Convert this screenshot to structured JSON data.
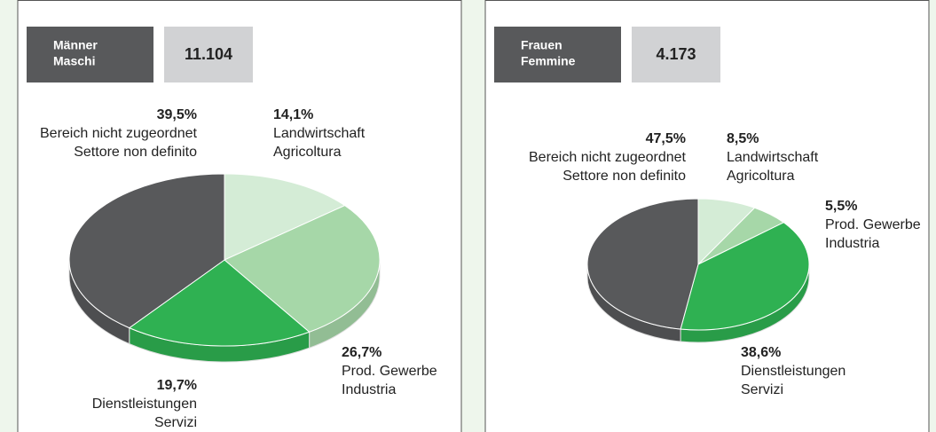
{
  "chart_data": [
    {
      "type": "pie3d",
      "title": [
        "Männer",
        "Maschi"
      ],
      "total": 11104,
      "total_label": "11.104",
      "categories": [
        "Landwirtschaft",
        "Prod. Gewerbe",
        "Dienstleistungen",
        "Bereich nicht zugeordnet"
      ],
      "categories_it": [
        "Agricoltura",
        "Industria",
        "Servizi",
        "Settore non definito"
      ],
      "values": [
        14.1,
        26.7,
        19.7,
        39.5
      ],
      "value_labels": [
        "14,1%",
        "26,7%",
        "19,7%",
        "39,5%"
      ],
      "colors": [
        "#d4ecd6",
        "#a6d7a8",
        "#2fb152",
        "#58595b"
      ]
    },
    {
      "type": "pie3d",
      "title": [
        "Frauen",
        "Femmine"
      ],
      "total": 4173,
      "total_label": "4.173",
      "categories": [
        "Landwirtschaft",
        "Prod. Gewerbe",
        "Dienstleistungen",
        "Bereich nicht zugeordnet"
      ],
      "categories_it": [
        "Agricoltura",
        "Industria",
        "Servizi",
        "Settore non definito"
      ],
      "values": [
        8.5,
        5.5,
        38.6,
        47.5
      ],
      "value_labels": [
        "8,5%",
        "5,5%",
        "38,6%",
        "47,5%"
      ],
      "colors": [
        "#d4ecd6",
        "#a6d7a8",
        "#2fb152",
        "#58595b"
      ]
    }
  ]
}
